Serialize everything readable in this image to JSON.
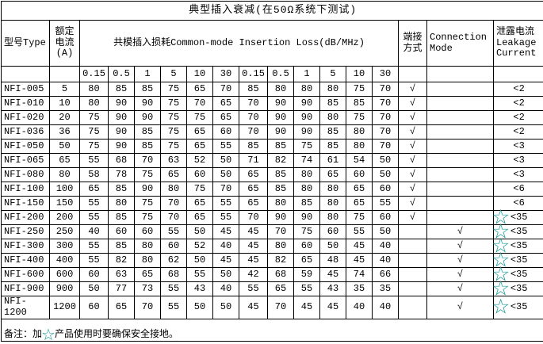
{
  "title": "典型插入衰减(在50Ω系统下测试)",
  "colors": {
    "star": "#179a97",
    "border": "#000000",
    "background": "#ffffff",
    "text": "#000000"
  },
  "icons": {
    "star": "☆",
    "checkmark": "√"
  },
  "header": {
    "model": "型号Type",
    "current": "额定\n电流\n(A)",
    "loss": "共模插入损耗Common-mode Insertion Loss(dB/MHz)",
    "termination": "端接\n方式",
    "connection": "Connection\nMode",
    "leakage": "泄露电流\nLeakage\nCurrent"
  },
  "table": {
    "frequencies": [
      "0.15",
      "0.5",
      "1",
      "5",
      "10",
      "30",
      "0.15",
      "0.5",
      "1",
      "5",
      "10",
      "30"
    ],
    "rows": [
      {
        "model": "NFI-005",
        "current": "5",
        "values": [
          "80",
          "85",
          "85",
          "75",
          "65",
          "70",
          "85",
          "80",
          "80",
          "80",
          "75",
          "70"
        ],
        "termination": true,
        "connection": false,
        "leakage": "<2",
        "star": false
      },
      {
        "model": "NFI-010",
        "current": "10",
        "values": [
          "80",
          "90",
          "90",
          "75",
          "70",
          "65",
          "70",
          "90",
          "90",
          "85",
          "85",
          "70"
        ],
        "termination": true,
        "connection": false,
        "leakage": "<2",
        "star": false
      },
      {
        "model": "NFI-020",
        "current": "20",
        "values": [
          "75",
          "90",
          "90",
          "75",
          "75",
          "65",
          "70",
          "90",
          "90",
          "80",
          "75",
          "70"
        ],
        "termination": true,
        "connection": false,
        "leakage": "<2",
        "star": false
      },
      {
        "model": "NFI-036",
        "current": "36",
        "values": [
          "75",
          "90",
          "85",
          "75",
          "65",
          "60",
          "70",
          "90",
          "90",
          "85",
          "80",
          "70"
        ],
        "termination": true,
        "connection": false,
        "leakage": "<2",
        "star": false
      },
      {
        "model": "NFI-050",
        "current": "50",
        "values": [
          "75",
          "90",
          "85",
          "75",
          "65",
          "55",
          "85",
          "85",
          "75",
          "85",
          "80",
          "70"
        ],
        "termination": true,
        "connection": false,
        "leakage": "<3",
        "star": false
      },
      {
        "model": "NFI-065",
        "current": "65",
        "values": [
          "55",
          "68",
          "70",
          "63",
          "52",
          "50",
          "71",
          "82",
          "74",
          "61",
          "54",
          "50"
        ],
        "termination": true,
        "connection": false,
        "leakage": "<3",
        "star": false
      },
      {
        "model": "NFI-080",
        "current": "80",
        "values": [
          "58",
          "78",
          "75",
          "65",
          "60",
          "50",
          "65",
          "85",
          "80",
          "65",
          "60",
          "50"
        ],
        "termination": true,
        "connection": false,
        "leakage": "<3",
        "star": false
      },
      {
        "model": "NFI-100",
        "current": "100",
        "values": [
          "65",
          "85",
          "90",
          "80",
          "75",
          "70",
          "65",
          "85",
          "80",
          "80",
          "65",
          "60"
        ],
        "termination": true,
        "connection": false,
        "leakage": "<6",
        "star": false
      },
      {
        "model": "NFI-150",
        "current": "150",
        "values": [
          "55",
          "80",
          "75",
          "70",
          "65",
          "55",
          "65",
          "80",
          "85",
          "80",
          "65",
          "55"
        ],
        "termination": true,
        "connection": false,
        "leakage": "<6",
        "star": false
      },
      {
        "model": "NFI-200",
        "current": "200",
        "values": [
          "55",
          "85",
          "75",
          "70",
          "65",
          "55",
          "70",
          "90",
          "90",
          "80",
          "75",
          "60"
        ],
        "termination": true,
        "connection": false,
        "leakage": "<35",
        "star": true
      },
      {
        "model": "NFI-250",
        "current": "250",
        "values": [
          "40",
          "60",
          "60",
          "55",
          "50",
          "45",
          "45",
          "70",
          "75",
          "60",
          "55",
          "50"
        ],
        "termination": false,
        "connection": true,
        "leakage": "<35",
        "star": true
      },
      {
        "model": "NFI-300",
        "current": "300",
        "values": [
          "55",
          "85",
          "80",
          "60",
          "52",
          "40",
          "45",
          "80",
          "60",
          "50",
          "45",
          "40"
        ],
        "termination": false,
        "connection": true,
        "leakage": "<35",
        "star": true
      },
      {
        "model": "NFI-400",
        "current": "400",
        "values": [
          "55",
          "82",
          "80",
          "62",
          "50",
          "45",
          "45",
          "82",
          "65",
          "48",
          "45",
          "40"
        ],
        "termination": false,
        "connection": true,
        "leakage": "<35",
        "star": true
      },
      {
        "model": "NFI-600",
        "current": "600",
        "values": [
          "60",
          "63",
          "65",
          "68",
          "55",
          "50",
          "42",
          "68",
          "59",
          "45",
          "74",
          "66"
        ],
        "termination": false,
        "connection": true,
        "leakage": "<35",
        "star": true
      },
      {
        "model": "NFI-900",
        "current": "900",
        "values": [
          "50",
          "77",
          "73",
          "55",
          "43",
          "40",
          "55",
          "65",
          "55",
          "43",
          "35",
          "35"
        ],
        "termination": false,
        "connection": true,
        "leakage": "<35",
        "star": true
      },
      {
        "model": "NFI-1200",
        "current": "1200",
        "values": [
          "60",
          "65",
          "70",
          "55",
          "50",
          "50",
          "45",
          "70",
          "45",
          "45",
          "40",
          "40"
        ],
        "termination": false,
        "connection": true,
        "leakage": "<35",
        "star": true
      }
    ]
  },
  "note": {
    "prefix": "备注：加",
    "suffix": "产品使用时要确保安全接地。"
  }
}
